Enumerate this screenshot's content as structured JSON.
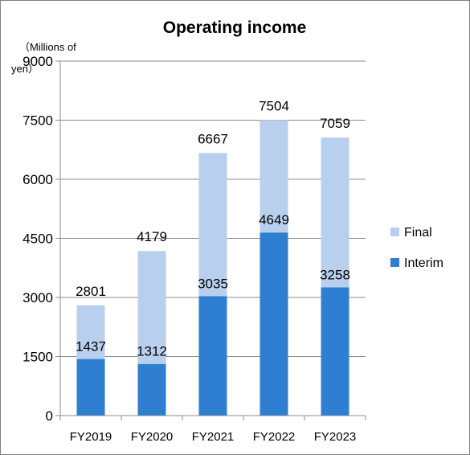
{
  "chart_data": {
    "type": "bar",
    "stacked": true,
    "title": "Operating income",
    "unit_label": "（Millions of yen）",
    "categories": [
      "FY2019",
      "FY2020",
      "FY2021",
      "FY2022",
      "FY2023"
    ],
    "series": [
      {
        "name": "Interim",
        "values": [
          1437,
          1312,
          3035,
          4649,
          3258
        ],
        "color": "#2e7fd2"
      },
      {
        "name": "Final",
        "values": [
          1364,
          2867,
          3632,
          2855,
          3801
        ],
        "color": "#b9cfee"
      }
    ],
    "totals": [
      2801,
      4179,
      6667,
      7504,
      7059
    ],
    "ylim": [
      0,
      9000
    ],
    "yticks": [
      0,
      1500,
      3000,
      4500,
      6000,
      7500,
      9000
    ],
    "grid": true,
    "legend_position": "right"
  }
}
